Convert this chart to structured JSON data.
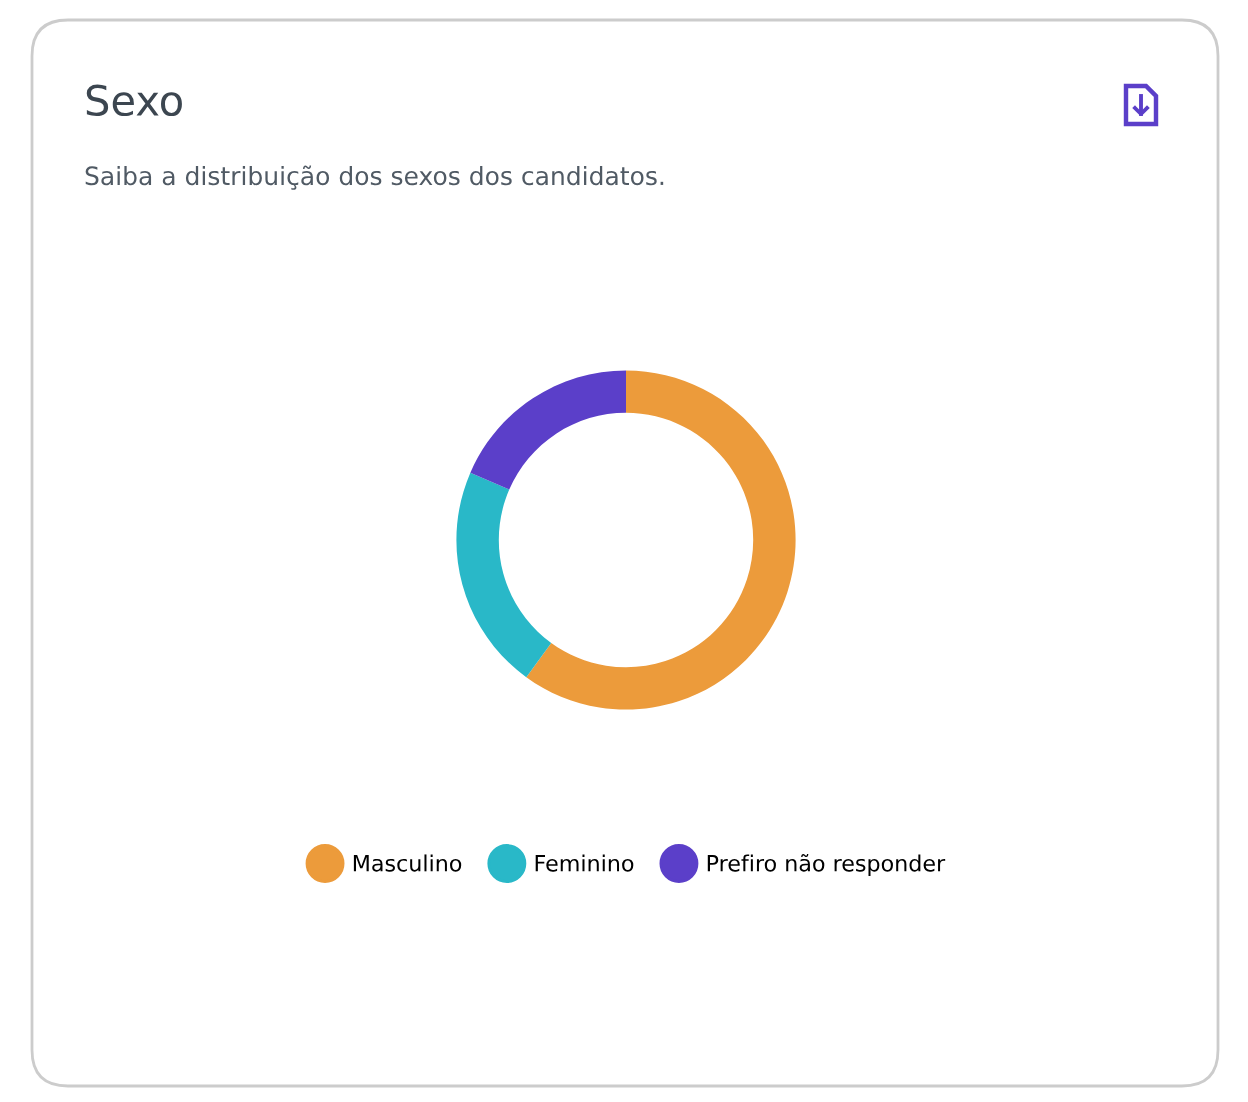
{
  "chart_data": {
    "type": "donut",
    "title": "Sexo",
    "subtitle": "Saiba a distribuição dos sexos dos candidatos.",
    "categories": [
      "Masculino",
      "Feminino",
      "Prefiro não responder"
    ],
    "values": [
      60,
      21.5,
      18.5
    ],
    "colors": [
      "#ec9b3b",
      "#29b8c8",
      "#5b3fc9"
    ],
    "legend": "bottom"
  }
}
